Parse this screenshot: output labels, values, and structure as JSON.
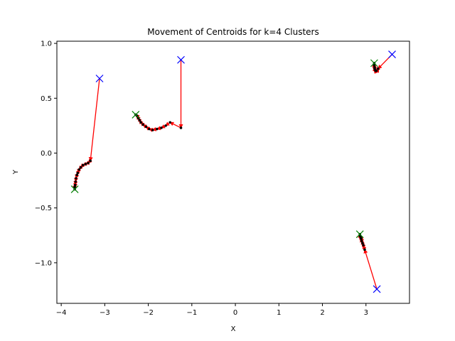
{
  "chart_data": {
    "type": "scatter",
    "title": "Movement of Centroids for k=4 Clusters",
    "xlabel": "X",
    "ylabel": "Y",
    "xlim": [
      -4.1,
      4.0
    ],
    "ylim": [
      -1.37,
      1.02
    ],
    "xticks": [
      -4,
      -3,
      -2,
      -1,
      0,
      1,
      2,
      3
    ],
    "xtick_labels": [
      "−4",
      "−3",
      "−2",
      "−1",
      "0",
      "1",
      "2",
      "3"
    ],
    "yticks": [
      -1.0,
      -0.5,
      0.0,
      0.5,
      1.0
    ],
    "ytick_labels": [
      "−1.0",
      "−0.5",
      "0.0",
      "0.5",
      "1.0"
    ],
    "grid": false,
    "colors": {
      "initial_marker": "#0000ff",
      "final_marker": "#008000",
      "path_arrow": "#ff0000",
      "path_point": "#000000"
    },
    "series": [
      {
        "path": [
          [
            -3.12,
            0.68
          ],
          [
            -3.33,
            -0.07
          ],
          [
            -3.38,
            -0.09
          ],
          [
            -3.44,
            -0.1
          ],
          [
            -3.5,
            -0.11
          ],
          [
            -3.55,
            -0.13
          ],
          [
            -3.59,
            -0.15
          ],
          [
            -3.62,
            -0.18
          ],
          [
            -3.64,
            -0.2
          ],
          [
            -3.66,
            -0.23
          ],
          [
            -3.67,
            -0.26
          ],
          [
            -3.68,
            -0.29
          ],
          [
            -3.69,
            -0.31
          ],
          [
            -3.69,
            -0.33
          ]
        ]
      },
      {
        "path": [
          [
            -1.25,
            0.85
          ],
          [
            -1.25,
            0.23
          ],
          [
            -1.5,
            0.28
          ],
          [
            -1.6,
            0.25
          ],
          [
            -1.7,
            0.23
          ],
          [
            -1.8,
            0.22
          ],
          [
            -1.9,
            0.21
          ],
          [
            -1.98,
            0.22
          ],
          [
            -2.05,
            0.24
          ],
          [
            -2.12,
            0.26
          ],
          [
            -2.17,
            0.28
          ],
          [
            -2.2,
            0.3
          ],
          [
            -2.23,
            0.32
          ],
          [
            -2.26,
            0.34
          ],
          [
            -2.29,
            0.35
          ]
        ]
      },
      {
        "path": [
          [
            3.6,
            0.9
          ],
          [
            3.28,
            0.77
          ],
          [
            3.24,
            0.75
          ],
          [
            3.22,
            0.75
          ],
          [
            3.21,
            0.76
          ],
          [
            3.2,
            0.77
          ],
          [
            3.2,
            0.78
          ],
          [
            3.19,
            0.8
          ],
          [
            3.19,
            0.81
          ],
          [
            3.19,
            0.82
          ]
        ]
      },
      {
        "path": [
          [
            3.25,
            -1.24
          ],
          [
            2.97,
            -0.88
          ],
          [
            2.94,
            -0.84
          ],
          [
            2.92,
            -0.82
          ],
          [
            2.9,
            -0.8
          ],
          [
            2.89,
            -0.78
          ],
          [
            2.88,
            -0.77
          ],
          [
            2.87,
            -0.76
          ],
          [
            2.86,
            -0.75
          ],
          [
            2.86,
            -0.74
          ]
        ]
      }
    ]
  }
}
